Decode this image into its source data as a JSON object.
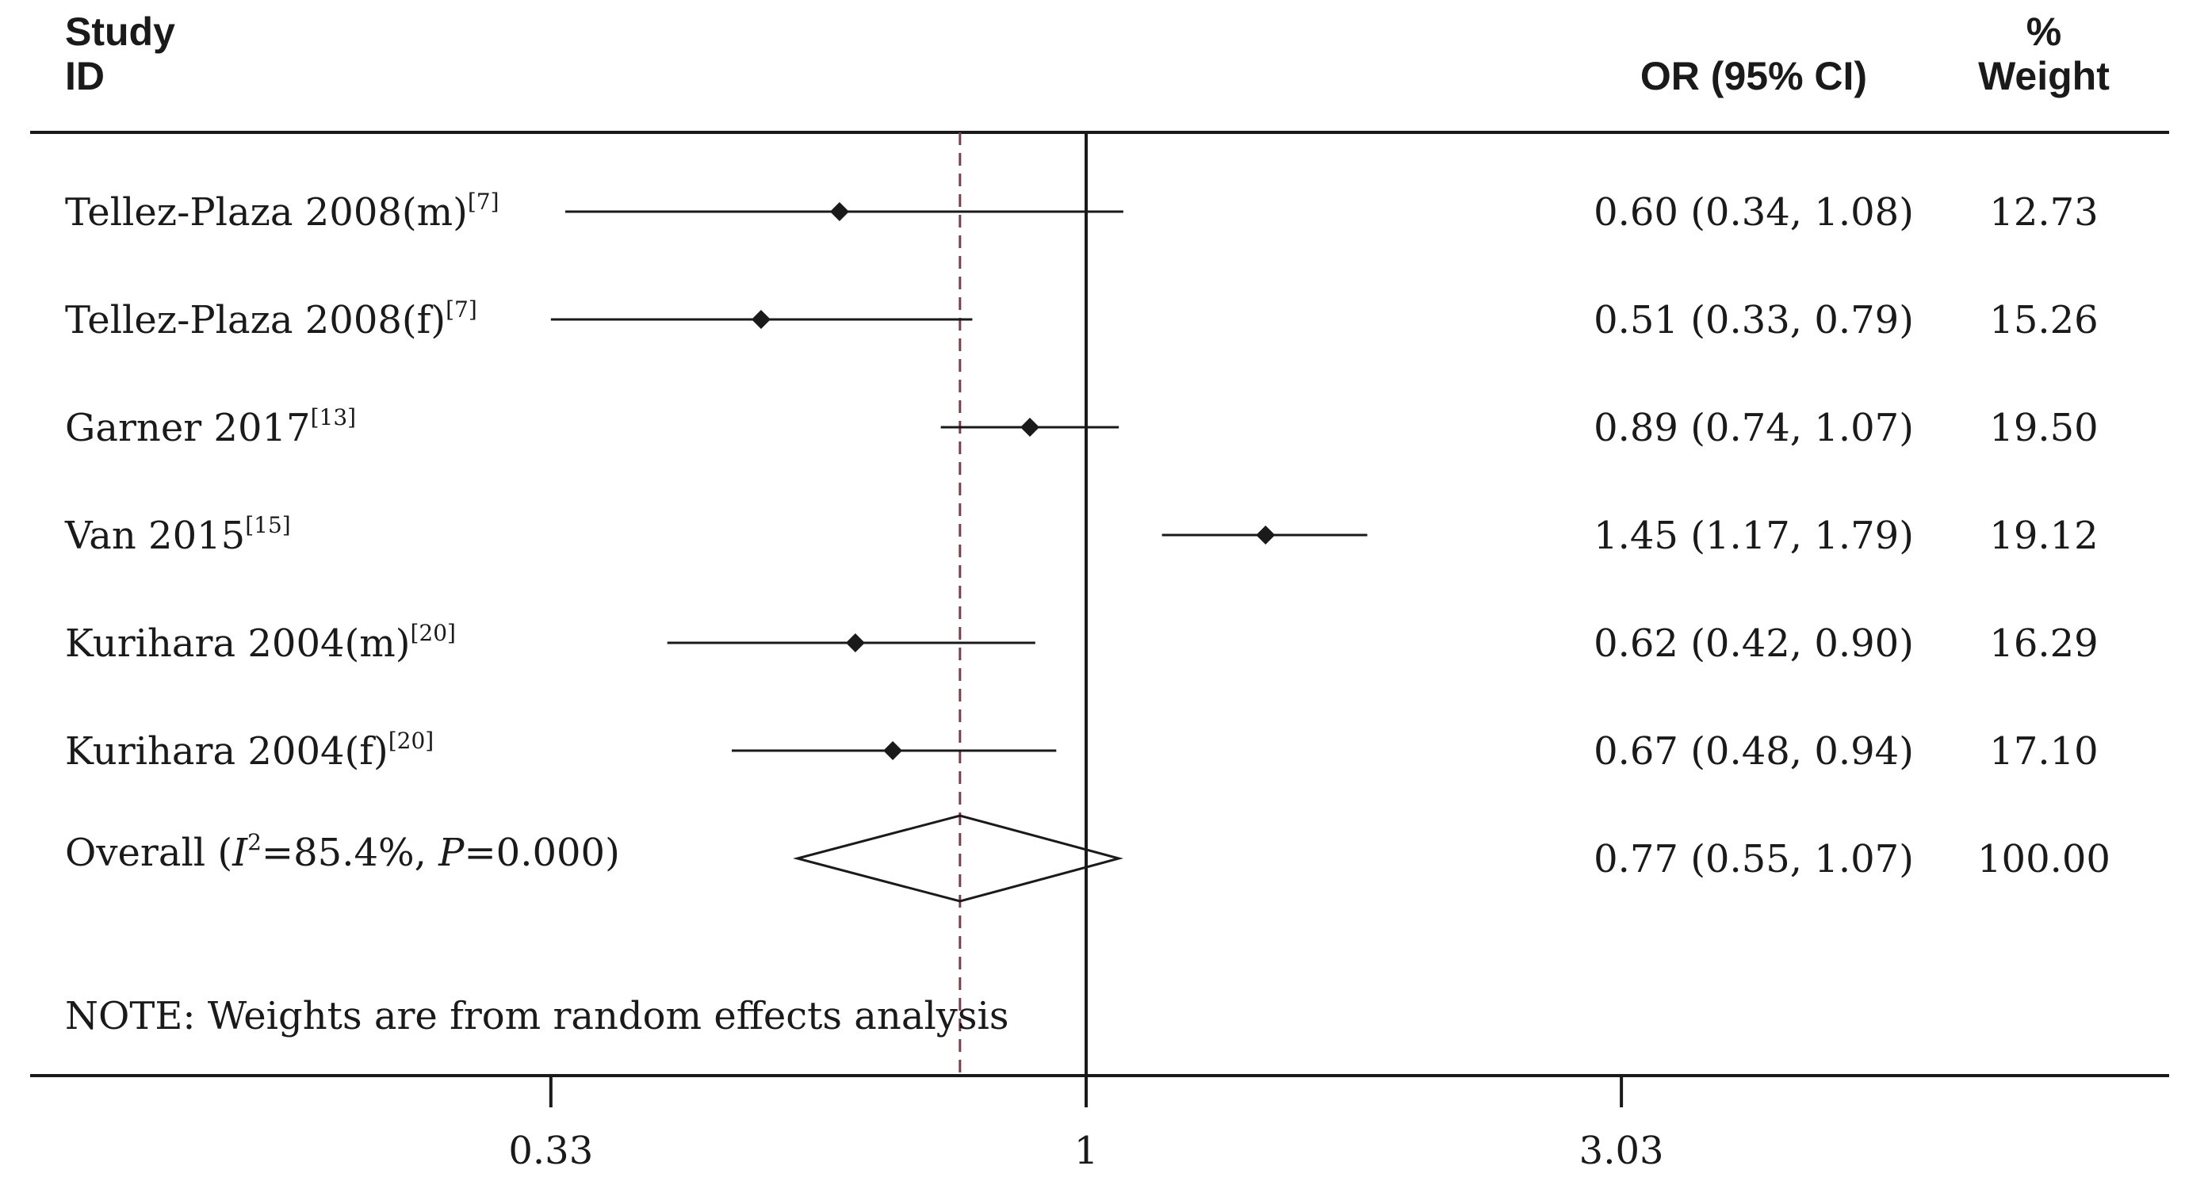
{
  "headers": {
    "study_line1": "Study",
    "study_line2": "ID",
    "or_ci": "OR (95% CI)",
    "weight_line1": "%",
    "weight_line2": "Weight"
  },
  "note": "NOTE: Weights are from random effects analysis",
  "overall_label": {
    "prefix": "Overall  (",
    "i_letter": "I",
    "i_sup": "2",
    "middle": "=85.4%, ",
    "p_letter": "P",
    "suffix": "=0.000)"
  },
  "colors": {
    "ink": "#1a1a1a",
    "pooled_reference_line": "#7b3f47"
  },
  "chart_data": {
    "type": "forest",
    "xscale": "log",
    "xlim": [
      0.25,
      6.0
    ],
    "xticks": [
      0.33,
      1,
      3.03
    ],
    "xtick_labels": [
      "0.33",
      "1",
      "3.03"
    ],
    "null_line": 1,
    "pooled_line": 0.77,
    "studies": [
      {
        "name": "Tellez-Plaza 2008(m)",
        "ref": "[7]",
        "or": 0.6,
        "lo": 0.34,
        "hi": 1.08,
        "ci_label": "0.60 (0.34, 1.08)",
        "weight": "12.73"
      },
      {
        "name": "Tellez-Plaza 2008(f)",
        "ref": "[7]",
        "or": 0.51,
        "lo": 0.33,
        "hi": 0.79,
        "ci_label": "0.51 (0.33, 0.79)",
        "weight": "15.26"
      },
      {
        "name": "Garner 2017",
        "ref": "[13]",
        "or": 0.89,
        "lo": 0.74,
        "hi": 1.07,
        "ci_label": "0.89 (0.74, 1.07)",
        "weight": "19.50"
      },
      {
        "name": "Van 2015",
        "ref": "[15]",
        "or": 1.45,
        "lo": 1.17,
        "hi": 1.79,
        "ci_label": "1.45 (1.17, 1.79)",
        "weight": "19.12"
      },
      {
        "name": "Kurihara 2004(m)",
        "ref": "[20]",
        "or": 0.62,
        "lo": 0.42,
        "hi": 0.9,
        "ci_label": "0.62 (0.42, 0.90)",
        "weight": "16.29"
      },
      {
        "name": "Kurihara 2004(f)",
        "ref": "[20]",
        "or": 0.67,
        "lo": 0.48,
        "hi": 0.94,
        "ci_label": "0.67 (0.48, 0.94)",
        "weight": "17.10"
      }
    ],
    "overall": {
      "or": 0.77,
      "lo": 0.55,
      "hi": 1.07,
      "ci_label": "0.77 (0.55, 1.07)",
      "weight": "100.00"
    }
  }
}
